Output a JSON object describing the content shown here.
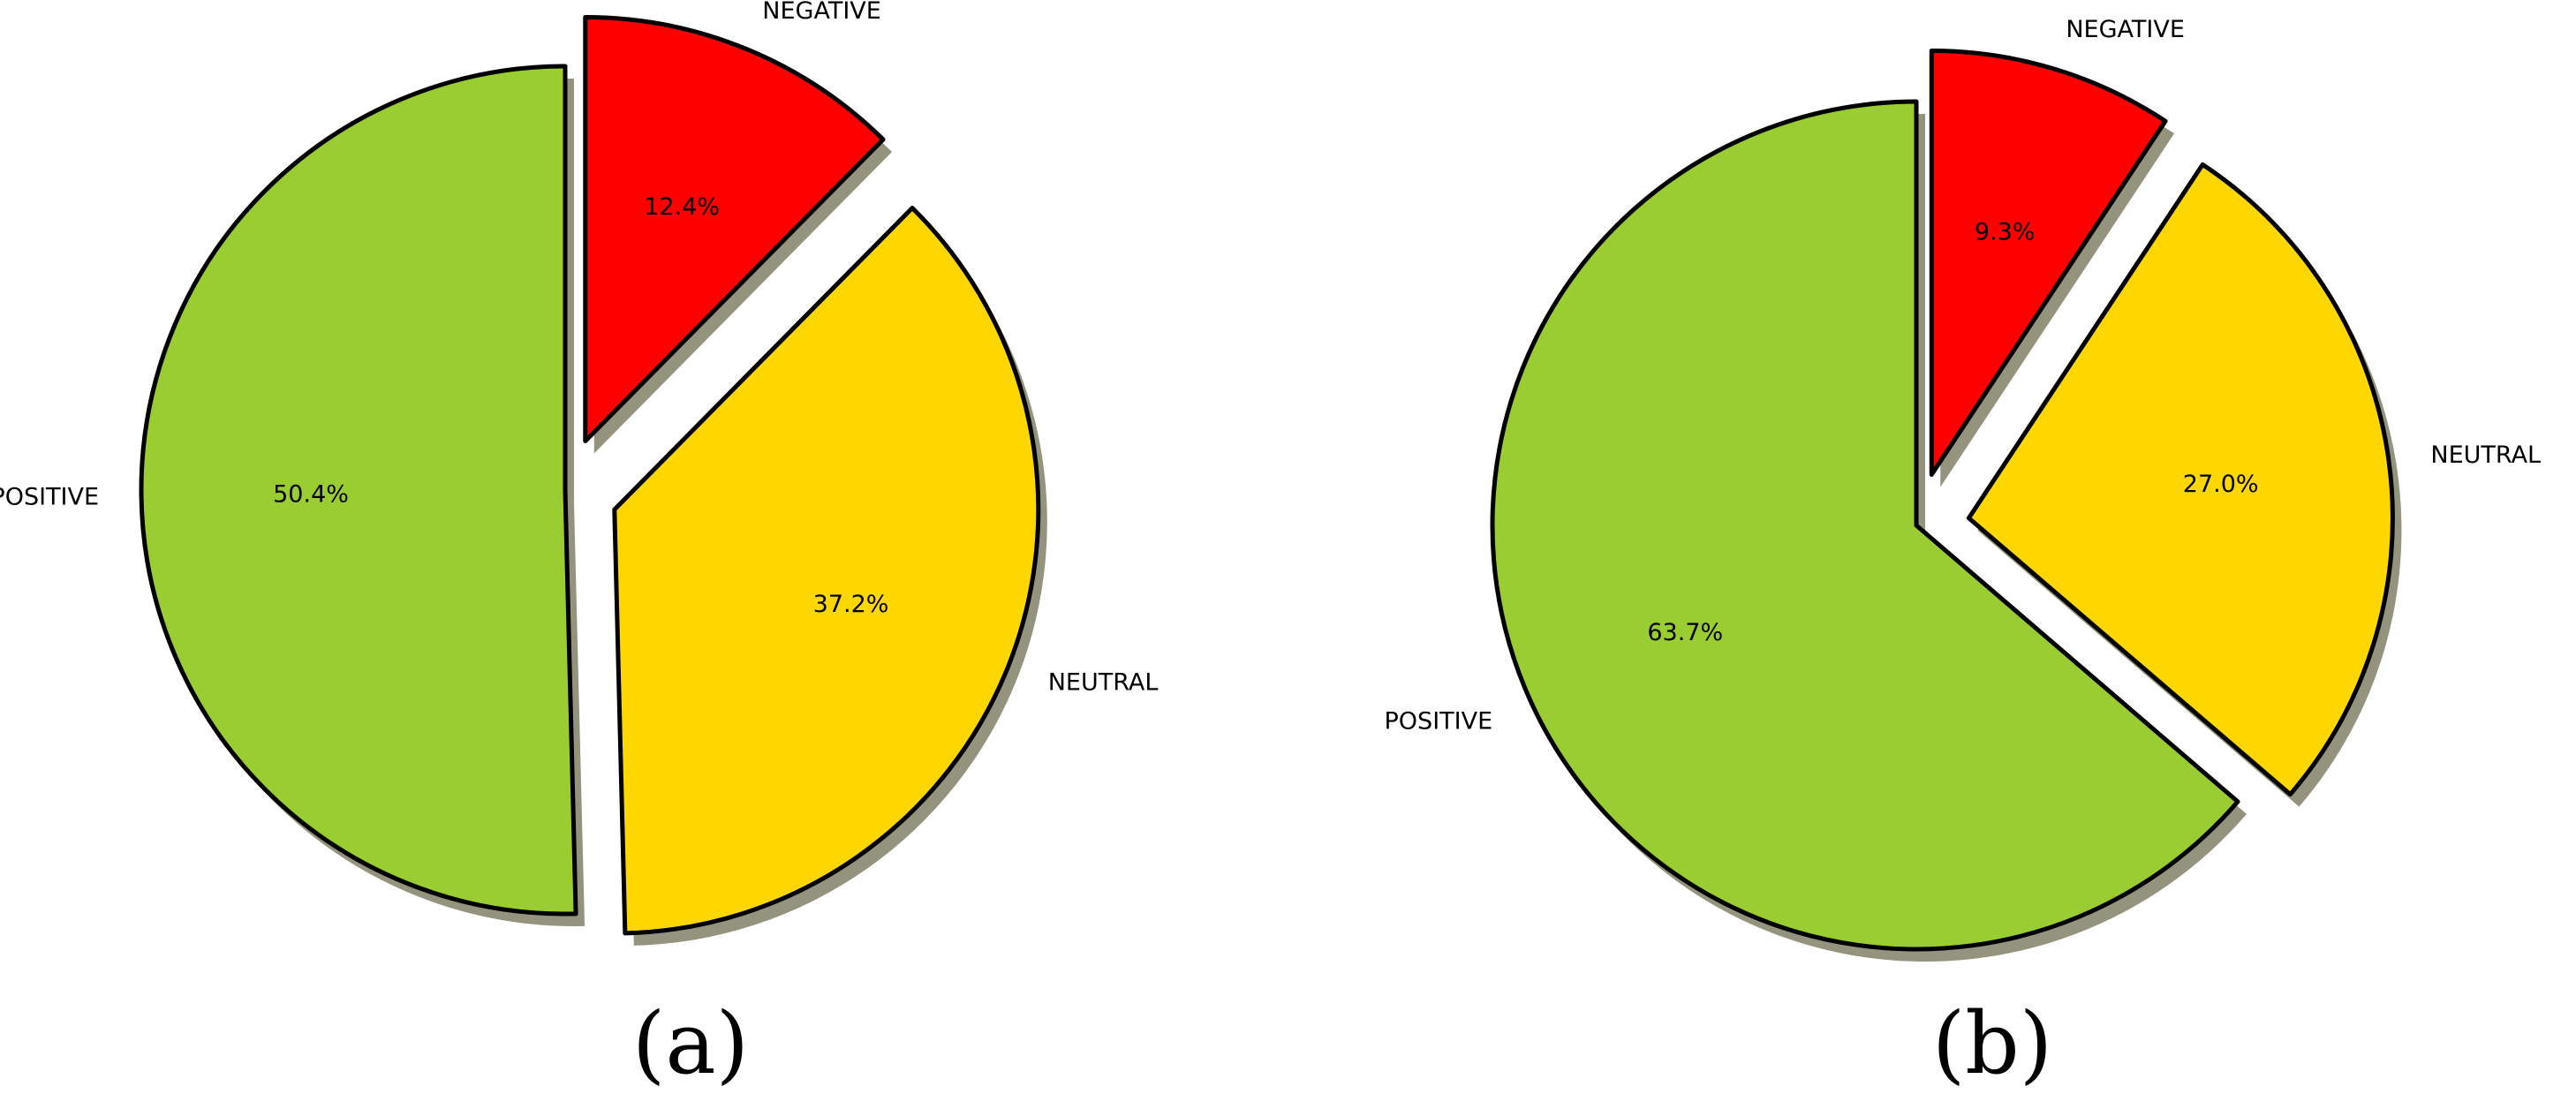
{
  "chart_data": [
    {
      "type": "pie",
      "caption": "(a)",
      "labels": [
        "NEGATIVE",
        "NEUTRAL",
        "POSITIVE"
      ],
      "values": [
        12.4,
        37.2,
        50.4
      ],
      "value_labels": [
        "12.4%",
        "37.2%",
        "50.4%"
      ],
      "colors": [
        "#ff0000",
        "#ffd700",
        "#9acd32"
      ],
      "exploded": [
        true,
        true,
        false
      ],
      "shadow": true,
      "start": "top, counter-clockwise for POSITIVE"
    },
    {
      "type": "pie",
      "caption": "(b)",
      "labels": [
        "NEGATIVE",
        "NEUTRAL",
        "POSITIVE"
      ],
      "values": [
        9.3,
        27.0,
        63.7
      ],
      "value_labels": [
        "9.3%",
        "27.0%",
        "63.7%"
      ],
      "colors": [
        "#ff0000",
        "#ffd700",
        "#9acd32"
      ],
      "exploded": [
        true,
        true,
        false
      ],
      "shadow": true,
      "start": "top, counter-clockwise for POSITIVE"
    }
  ]
}
